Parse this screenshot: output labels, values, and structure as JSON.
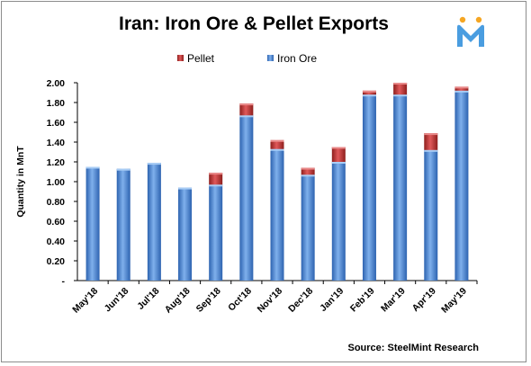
{
  "chart_data": {
    "type": "bar",
    "stacked": true,
    "title": "Iran: Iron Ore & Pellet Exports",
    "ylabel": "Quantity in MnT",
    "xlabel": "",
    "ylim": [
      0,
      2.0
    ],
    "yticks": [
      "-",
      "0.20",
      "0.40",
      "0.60",
      "0.80",
      "1.00",
      "1.20",
      "1.40",
      "1.60",
      "1.80",
      "2.00"
    ],
    "grid": false,
    "legend_position": "top-center",
    "categories": [
      "May'18",
      "Jun'18",
      "Jul'18",
      "Aug'18",
      "Sep'18",
      "Oct'18",
      "Nov'18",
      "Dec'18",
      "Jan'19",
      "Feb'19",
      "Mar'19",
      "Apr'19",
      "May'19"
    ],
    "series": [
      {
        "name": "Iron Ore",
        "color": "#3f7fd3",
        "values": [
          1.15,
          1.13,
          1.19,
          0.94,
          0.97,
          1.67,
          1.33,
          1.07,
          1.2,
          1.88,
          1.88,
          1.32,
          1.92
        ]
      },
      {
        "name": "Pellet",
        "color": "#c0312f",
        "values": [
          0.0,
          0.0,
          0.0,
          0.0,
          0.12,
          0.12,
          0.09,
          0.07,
          0.15,
          0.04,
          0.12,
          0.17,
          0.04
        ]
      }
    ],
    "legend_order": [
      "Pellet",
      "Iron Ore"
    ],
    "source": "Source: SteelMint Research"
  },
  "logo": {
    "name": "steelmint-logo-icon",
    "letter": "M",
    "colors": {
      "body": "#4a9de0",
      "dot": "#f5a623"
    }
  }
}
